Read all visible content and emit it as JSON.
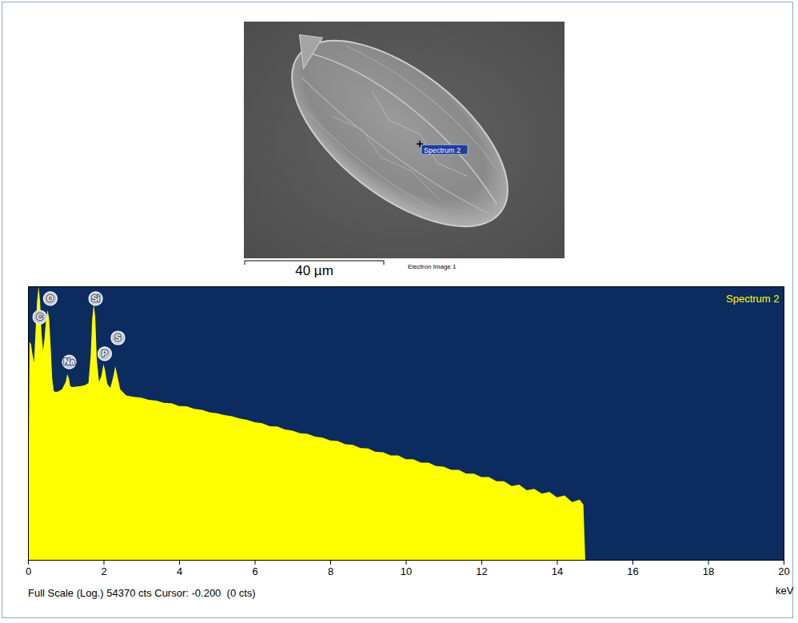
{
  "electron_image": {
    "label": "Electron Image 1",
    "scale_bar": "40 µm",
    "marker": "Spectrum 2"
  },
  "chart_data": {
    "type": "area",
    "title": "Spectrum 2",
    "xlabel": "keV",
    "footer": "Full Scale (Log.) 54370 cts Cursor: -0.200  (0 cts)",
    "color": "#ffff00",
    "log": "y",
    "tick_labels": "x",
    "grid": false,
    "xlim": [
      0,
      20
    ],
    "xticks": [
      0,
      2,
      4,
      6,
      8,
      10,
      12,
      14,
      16,
      18,
      20
    ],
    "ylim": [
      1,
      54370
    ],
    "x": [
      0,
      0.04,
      0.08,
      0.12,
      0.16,
      0.2,
      0.24,
      0.28,
      0.32,
      0.36,
      0.4,
      0.44,
      0.48,
      0.52,
      0.56,
      0.6,
      0.64,
      0.68,
      0.72,
      0.8,
      0.9,
      1.0,
      1.04,
      1.08,
      1.12,
      1.2,
      1.3,
      1.4,
      1.5,
      1.6,
      1.66,
      1.7,
      1.74,
      1.78,
      1.82,
      1.88,
      1.94,
      2.0,
      2.04,
      2.1,
      2.18,
      2.26,
      2.31,
      2.36,
      2.44,
      2.6,
      2.8,
      3.0,
      3.2,
      3.4,
      3.6,
      3.8,
      4.0,
      4.2,
      4.4,
      4.6,
      4.8,
      5.0,
      5.2,
      5.4,
      5.6,
      5.8,
      6.0,
      6.2,
      6.4,
      6.6,
      6.8,
      7.0,
      7.2,
      7.4,
      7.6,
      7.8,
      8.0,
      8.2,
      8.4,
      8.6,
      8.8,
      9.0,
      9.2,
      9.4,
      9.6,
      9.8,
      10.0,
      10.2,
      10.4,
      10.6,
      10.8,
      11.0,
      11.2,
      11.4,
      11.6,
      11.8,
      12.0,
      12.2,
      12.4,
      12.6,
      12.8,
      13.0,
      13.2,
      13.4,
      13.6,
      13.8,
      14.0,
      14.2,
      14.4,
      14.6,
      14.7,
      14.75
    ],
    "values": [
      1,
      6000,
      5400,
      3600,
      2600,
      9000,
      30000,
      54000,
      30000,
      8000,
      4200,
      7000,
      15000,
      21000,
      15000,
      5000,
      1400,
      850,
      800,
      820,
      900,
      1200,
      1650,
      1400,
      1000,
      980,
      1000,
      1020,
      1050,
      1150,
      3500,
      15000,
      27000,
      16000,
      3000,
      1200,
      1500,
      2450,
      1900,
      1100,
      950,
      1500,
      2250,
      1600,
      900,
      700,
      660,
      640,
      590,
      570,
      520,
      515,
      460,
      455,
      410,
      395,
      360,
      345,
      320,
      305,
      280,
      265,
      240,
      232,
      205,
      204,
      180,
      172,
      155,
      152,
      136,
      130,
      117,
      114,
      100,
      98,
      86,
      85,
      74,
      73,
      64,
      64,
      55,
      55,
      48,
      48,
      42,
      41,
      36,
      36,
      31,
      31,
      27,
      27,
      23,
      23,
      19,
      20,
      16,
      17,
      14,
      15,
      12,
      13,
      10,
      11,
      9,
      1
    ],
    "annotations": [
      {
        "text": "C",
        "x": 0.3,
        "y": 16200
      },
      {
        "text": "O",
        "x": 0.58,
        "y": 33900
      },
      {
        "text": "Na",
        "x": 1.08,
        "y": 2700
      },
      {
        "text": "Si",
        "x": 1.78,
        "y": 33900
      },
      {
        "text": "P",
        "x": 2.02,
        "y": 3750
      },
      {
        "text": "S",
        "x": 2.37,
        "y": 7070
      }
    ]
  }
}
